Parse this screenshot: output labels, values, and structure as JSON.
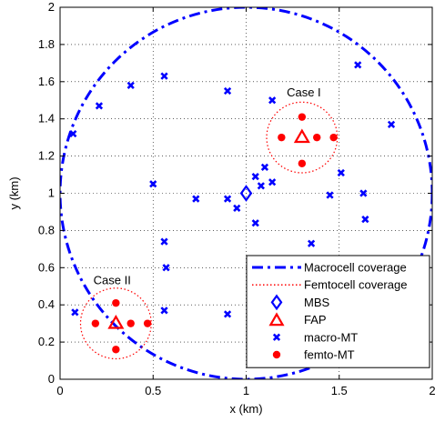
{
  "chart_data": {
    "type": "scatter",
    "title": "",
    "xlabel": "x (km)",
    "ylabel": "y (km)",
    "xlim": [
      0,
      2
    ],
    "ylim": [
      0,
      2
    ],
    "xticks": [
      0,
      0.5,
      1,
      1.5,
      2
    ],
    "yticks": [
      0,
      0.2,
      0.4,
      0.6,
      0.8,
      1,
      1.2,
      1.4,
      1.6,
      1.8,
      2
    ],
    "grid": true,
    "legend_position": "bottom-right",
    "colors": {
      "blue": "#0000ff",
      "red": "#ff0000"
    },
    "macrocell": {
      "center": [
        1,
        1
      ],
      "radius": 1
    },
    "femtocells": [
      {
        "center": [
          1.3,
          1.3
        ],
        "radius": 0.19
      },
      {
        "center": [
          0.3,
          0.3
        ],
        "radius": 0.19
      }
    ],
    "annotations": [
      {
        "text": "Case I",
        "x": 1.31,
        "y": 1.52
      },
      {
        "text": "Case II",
        "x": 0.28,
        "y": 0.51
      }
    ],
    "series": [
      {
        "name": "Macrocell coverage",
        "style": "dash-dot-line",
        "color": "#0000ff"
      },
      {
        "name": "Femtocell coverage",
        "style": "dotted-line",
        "color": "#ff0000"
      },
      {
        "name": "MBS",
        "style": "diamond",
        "color": "#0000ff",
        "points": [
          [
            1.0,
            1.0
          ]
        ]
      },
      {
        "name": "FAP",
        "style": "triangle",
        "color": "#ff0000",
        "points": [
          [
            1.3,
            1.3
          ],
          [
            0.3,
            0.3
          ]
        ]
      },
      {
        "name": "macro-MT",
        "style": "x",
        "color": "#0000ff",
        "points": [
          [
            0.07,
            1.32
          ],
          [
            0.21,
            1.47
          ],
          [
            0.38,
            1.58
          ],
          [
            0.56,
            1.63
          ],
          [
            0.9,
            1.55
          ],
          [
            1.14,
            1.5
          ],
          [
            1.6,
            1.69
          ],
          [
            1.78,
            1.37
          ],
          [
            1.1,
            1.14
          ],
          [
            1.14,
            1.06
          ],
          [
            1.05,
            1.09
          ],
          [
            1.08,
            1.04
          ],
          [
            0.5,
            1.05
          ],
          [
            0.73,
            0.97
          ],
          [
            0.9,
            0.97
          ],
          [
            0.95,
            0.92
          ],
          [
            1.05,
            0.84
          ],
          [
            1.45,
            0.99
          ],
          [
            1.51,
            1.11
          ],
          [
            1.63,
            1.0
          ],
          [
            1.64,
            0.86
          ],
          [
            1.35,
            0.73
          ],
          [
            0.56,
            0.74
          ],
          [
            0.57,
            0.6
          ],
          [
            0.56,
            0.37
          ],
          [
            0.9,
            0.35
          ],
          [
            0.08,
            0.36
          ]
        ]
      },
      {
        "name": "femto-MT",
        "style": "dot",
        "color": "#ff0000",
        "points": [
          [
            1.3,
            1.41
          ],
          [
            1.19,
            1.3
          ],
          [
            1.38,
            1.3
          ],
          [
            1.47,
            1.3
          ],
          [
            1.3,
            1.16
          ],
          [
            0.3,
            0.41
          ],
          [
            0.19,
            0.3
          ],
          [
            0.38,
            0.3
          ],
          [
            0.47,
            0.3
          ],
          [
            0.3,
            0.16
          ]
        ]
      }
    ]
  }
}
